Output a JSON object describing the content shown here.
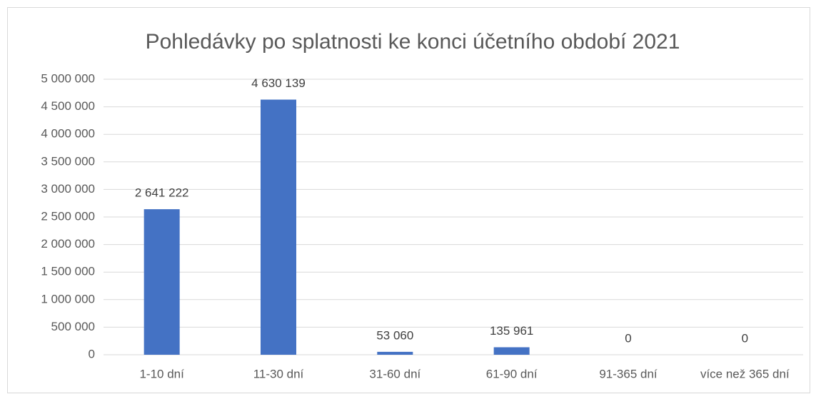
{
  "chart_data": {
    "type": "bar",
    "title": "Pohledávky po splatnosti ke konci účetního období 2021",
    "categories": [
      "1-10 dní",
      "11-30 dní",
      "31-60 dní",
      "61-90 dní",
      "91-365 dní",
      "více než 365 dní"
    ],
    "values": [
      2641222,
      4630139,
      53060,
      135961,
      0,
      0
    ],
    "value_labels": [
      "2 641 222",
      "4 630 139",
      "53 060",
      "135 961",
      "0",
      "0"
    ],
    "color": "#4472c4",
    "ylim": [
      0,
      5000000
    ],
    "yticks": [
      0,
      {
        "value": 500000,
        "label": "500 000"
      },
      {
        "value": 1000000,
        "label": "1 000 000"
      },
      {
        "value": 1500000,
        "label": "1 500 000"
      },
      {
        "value": 2000000,
        "label": "2 000 000"
      },
      {
        "value": 2500000,
        "label": "2 500 000"
      },
      {
        "value": 3000000,
        "label": "3 000 000"
      },
      {
        "value": 3500000,
        "label": "3 500 000"
      },
      {
        "value": 4000000,
        "label": "4 000 000"
      },
      {
        "value": 4500000,
        "label": "4 500 000"
      },
      {
        "value": 5000000,
        "label": "5 000 000"
      }
    ],
    "grid": true
  }
}
